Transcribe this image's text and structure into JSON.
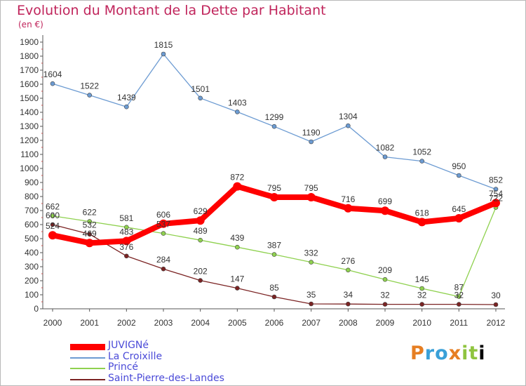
{
  "title": "Evolution du Montant de la Dette par Habitant",
  "unit": "(en €)",
  "logo": "Proxiti",
  "chart_data": {
    "type": "line",
    "x": [
      "2000",
      "2001",
      "2002",
      "2003",
      "2004",
      "2005",
      "2006",
      "2007",
      "2008",
      "2009",
      "2010",
      "2011",
      "2012"
    ],
    "ylim": [
      0,
      1900
    ],
    "yticks": [
      0,
      100,
      200,
      300,
      400,
      500,
      600,
      700,
      800,
      900,
      1000,
      1100,
      1200,
      1300,
      1400,
      1500,
      1600,
      1700,
      1800,
      1900
    ],
    "grid": false,
    "legend_position": "bottom-left",
    "series": [
      {
        "name": "JUVIGNé",
        "color": "#ff0000",
        "values": [
          524,
          469,
          483,
          606,
          629,
          872,
          795,
          795,
          716,
          699,
          618,
          645,
          754
        ]
      },
      {
        "name": "La Croixille",
        "color": "#6c9bd2",
        "values": [
          1604,
          1522,
          1439,
          1815,
          1501,
          1403,
          1299,
          1190,
          1304,
          1082,
          1052,
          950,
          852
        ]
      },
      {
        "name": "Princé",
        "color": "#8fd14f",
        "values": [
          662,
          622,
          581,
          537,
          489,
          439,
          387,
          332,
          276,
          209,
          145,
          87,
          722
        ]
      },
      {
        "name": "Saint-Pierre-des-Landes",
        "color": "#7b2323",
        "values": [
          600,
          532,
          376,
          284,
          202,
          147,
          85,
          35,
          34,
          32,
          32,
          32,
          30
        ]
      }
    ]
  }
}
